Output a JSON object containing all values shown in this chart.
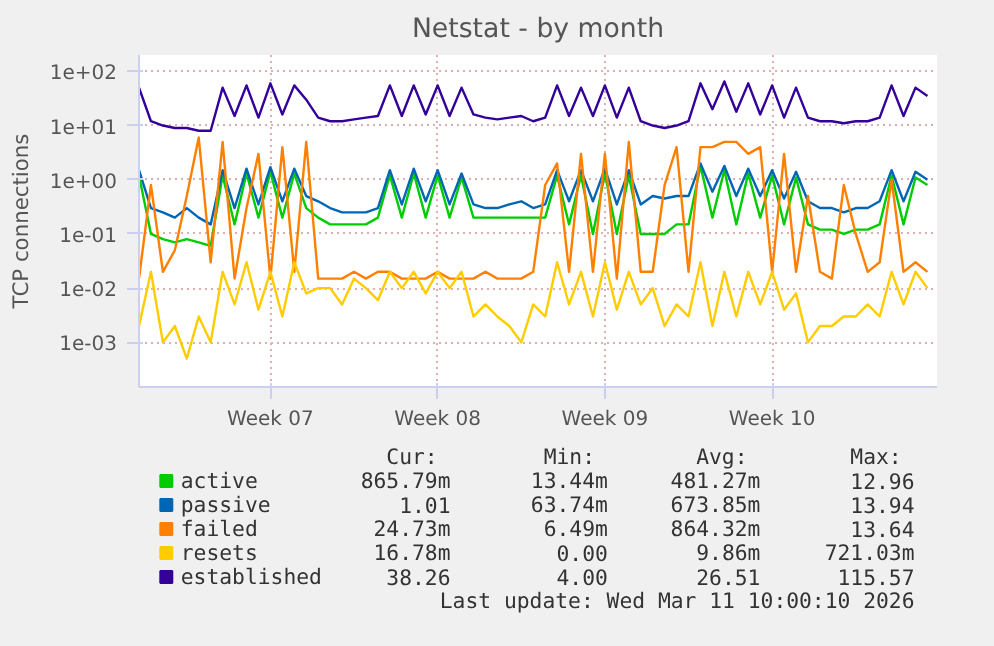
{
  "chart_data": {
    "type": "line",
    "title": "Netstat - by month",
    "ylabel": "TCP connections",
    "categories": [
      null,
      null,
      null,
      null,
      null,
      null,
      null,
      null,
      null,
      null,
      null,
      "Week 07",
      null,
      null,
      null,
      null,
      null,
      null,
      null,
      null,
      null,
      null,
      null,
      null,
      null,
      "Week 08",
      null,
      null,
      null,
      null,
      null,
      null,
      null,
      null,
      null,
      null,
      null,
      null,
      null,
      "Week 09",
      null,
      null,
      null,
      null,
      null,
      null,
      null,
      null,
      null,
      null,
      null,
      null,
      null,
      "Week 10",
      null,
      null,
      null,
      null,
      null,
      null,
      null,
      null,
      null,
      null,
      null,
      null,
      null
    ],
    "series": [
      {
        "name": "active",
        "color": "#00cc00",
        "values": [
          1.2,
          0.1,
          0.08,
          0.07,
          0.08,
          0.07,
          0.06,
          1.2,
          0.15,
          1.3,
          0.2,
          1.4,
          0.2,
          1.3,
          0.3,
          0.2,
          0.15,
          0.15,
          0.15,
          0.15,
          0.2,
          1.2,
          0.2,
          1.3,
          0.2,
          1.2,
          0.2,
          1.1,
          0.2,
          0.2,
          0.2,
          0.2,
          0.2,
          0.2,
          0.2,
          1.2,
          0.15,
          1.2,
          0.1,
          1.3,
          0.1,
          1.2,
          0.1,
          0.1,
          0.1,
          0.15,
          0.15,
          1.8,
          0.2,
          1.5,
          0.15,
          1.3,
          0.2,
          1.2,
          0.15,
          1.1,
          0.15,
          0.12,
          0.12,
          0.1,
          0.12,
          0.12,
          0.15,
          1.2,
          0.15,
          1.1,
          0.8
        ]
      },
      {
        "name": "passive",
        "color": "#0066b3",
        "values": [
          1.5,
          0.3,
          0.25,
          0.2,
          0.3,
          0.2,
          0.15,
          1.5,
          0.3,
          1.6,
          0.35,
          1.7,
          0.4,
          1.6,
          0.5,
          0.4,
          0.3,
          0.25,
          0.25,
          0.25,
          0.3,
          1.5,
          0.35,
          1.6,
          0.4,
          1.5,
          0.35,
          1.3,
          0.35,
          0.3,
          0.3,
          0.35,
          0.4,
          0.3,
          0.35,
          1.5,
          0.4,
          1.5,
          0.4,
          1.6,
          0.35,
          1.5,
          0.35,
          0.5,
          0.45,
          0.5,
          0.5,
          2.0,
          0.6,
          1.8,
          0.5,
          1.6,
          0.5,
          1.5,
          0.45,
          1.4,
          0.4,
          0.3,
          0.3,
          0.25,
          0.3,
          0.3,
          0.4,
          1.5,
          0.4,
          1.4,
          1.0
        ]
      },
      {
        "name": "failed",
        "color": "#ff8000",
        "values": [
          0.015,
          0.8,
          0.02,
          0.05,
          0.5,
          6,
          0.03,
          5,
          0.015,
          0.3,
          3,
          0.015,
          4,
          0.02,
          5,
          0.015,
          0.015,
          0.015,
          0.02,
          0.015,
          0.02,
          0.02,
          0.015,
          0.015,
          0.015,
          0.02,
          0.015,
          0.015,
          0.015,
          0.02,
          0.015,
          0.015,
          0.015,
          0.02,
          0.8,
          2,
          0.02,
          3,
          0.02,
          3,
          0.015,
          5,
          0.02,
          0.02,
          0.8,
          4,
          0.02,
          4,
          4,
          5,
          5,
          3,
          4,
          0.02,
          3,
          0.02,
          0.5,
          0.02,
          0.015,
          0.8,
          0.1,
          0.02,
          0.03,
          1,
          0.02,
          0.03,
          0.02
        ]
      },
      {
        "name": "resets",
        "color": "#ffcc00",
        "values": [
          0.002,
          0.02,
          0.001,
          0.002,
          0.0005,
          0.003,
          0.001,
          0.02,
          0.005,
          0.03,
          0.004,
          0.02,
          0.003,
          0.03,
          0.008,
          0.01,
          0.01,
          0.005,
          0.015,
          0.01,
          0.006,
          0.02,
          0.01,
          0.02,
          0.008,
          0.02,
          0.01,
          0.02,
          0.003,
          0.005,
          0.003,
          0.002,
          0.001,
          0.005,
          0.003,
          0.03,
          0.005,
          0.02,
          0.003,
          0.03,
          0.004,
          0.02,
          0.005,
          0.01,
          0.002,
          0.005,
          0.003,
          0.03,
          0.002,
          0.02,
          0.003,
          0.02,
          0.005,
          0.02,
          0.004,
          0.008,
          0.001,
          0.002,
          0.002,
          0.003,
          0.003,
          0.005,
          0.003,
          0.02,
          0.005,
          0.02,
          0.01
        ]
      },
      {
        "name": "established",
        "color": "#330099",
        "values": [
          50,
          12,
          10,
          9,
          9,
          8,
          8,
          50,
          15,
          55,
          14,
          60,
          16,
          55,
          30,
          14,
          12,
          12,
          13,
          14,
          15,
          55,
          15,
          55,
          16,
          55,
          15,
          50,
          16,
          14,
          13,
          14,
          15,
          12,
          14,
          55,
          15,
          50,
          15,
          55,
          14,
          50,
          12,
          10,
          9,
          10,
          12,
          60,
          20,
          65,
          18,
          60,
          16,
          55,
          14,
          50,
          14,
          12,
          12,
          11,
          12,
          12,
          14,
          55,
          15,
          50,
          35
        ]
      }
    ],
    "ylim": [
      0.00015,
      200
    ],
    "log": true,
    "yticks": [
      {
        "value": 0.001,
        "label": "1e-03"
      },
      {
        "value": 0.01,
        "label": "1e-02"
      },
      {
        "value": 0.1,
        "label": "1e-01"
      },
      {
        "value": 1,
        "label": "1e+00"
      },
      {
        "value": 10,
        "label": "1e+01"
      },
      {
        "value": 100,
        "label": "1e+02"
      }
    ],
    "grid": true,
    "legend": "bottom",
    "annotations": [
      "Cur:",
      "Min:",
      "Avg:",
      "Max:",
      "865.79m",
      "13.44m",
      "481.27m",
      "12.96",
      "1.01",
      "63.74m",
      "673.85m",
      "13.94",
      "24.73m",
      "6.49m",
      "864.32m",
      "13.64",
      "16.78m",
      "0.00",
      "9.86m",
      "721.03m",
      "38.26",
      "4.00",
      "26.51",
      "115.57",
      "Last update: Wed Mar 11 10:00:10 2026"
    ]
  }
}
